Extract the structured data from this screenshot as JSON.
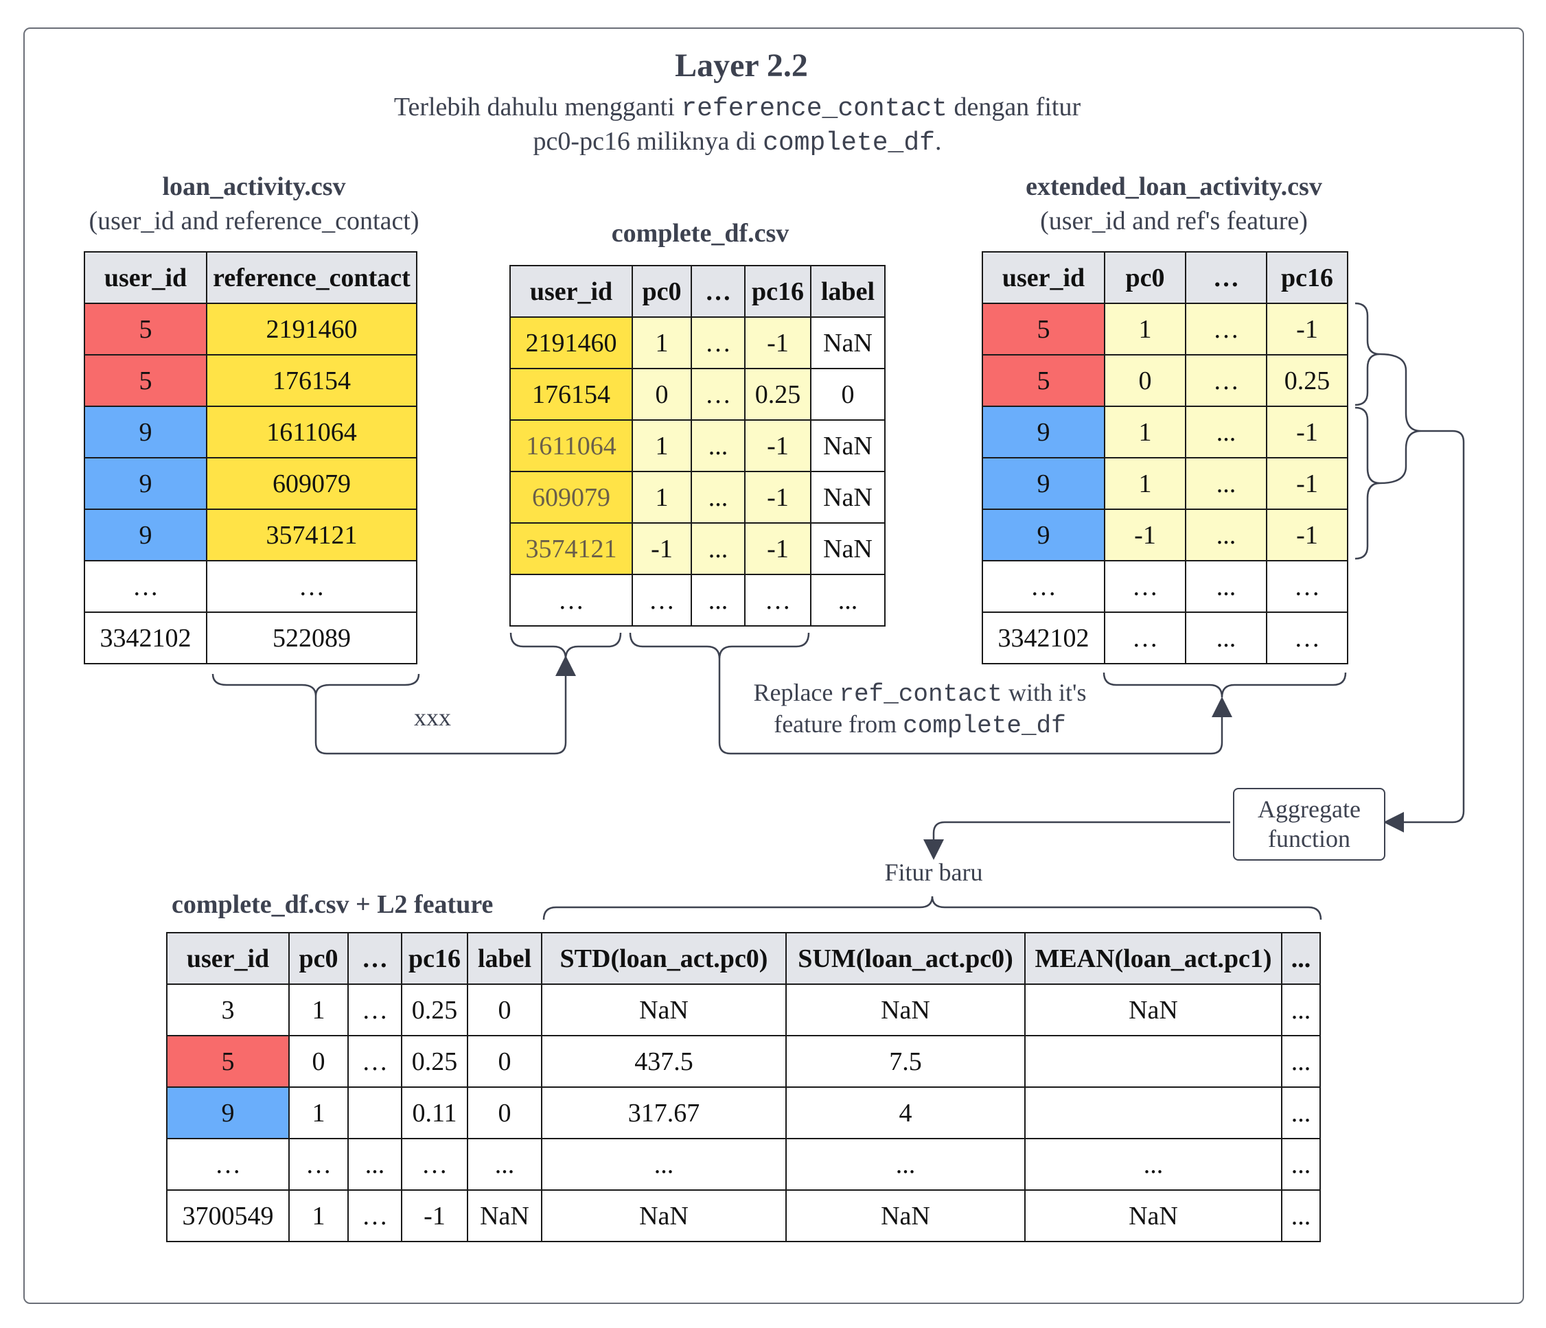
{
  "title": "Layer 2.2",
  "subtitle": {
    "l1_a": "Terlebih dahulu mengganti ",
    "l1_code": "reference_contact",
    "l1_b": " dengan fitur",
    "l2_a": "pc0-pc16 miliknya di ",
    "l2_code": "complete_df",
    "l2_b": "."
  },
  "loan_activity": {
    "title": "loan_activity.csv",
    "subtitle": "(user_id and reference_contact)",
    "headers": [
      "user_id",
      "reference_contact"
    ],
    "rows": [
      [
        "5",
        "2191460"
      ],
      [
        "5",
        "176154"
      ],
      [
        "9",
        "1611064"
      ],
      [
        "9",
        "609079"
      ],
      [
        "9",
        "3574121"
      ],
      [
        "…",
        "…"
      ],
      [
        "3342102",
        "522089"
      ]
    ]
  },
  "complete_df": {
    "title": "complete_df.csv",
    "headers": [
      "user_id",
      "pc0",
      "…",
      "pc16",
      "label"
    ],
    "rows": [
      [
        "2191460",
        "1",
        "…",
        "-1",
        "NaN"
      ],
      [
        "176154",
        "0",
        "…",
        "0.25",
        "0"
      ],
      [
        "1611064",
        "1",
        "...",
        "-1",
        "NaN"
      ],
      [
        "609079",
        "1",
        "...",
        "-1",
        "NaN"
      ],
      [
        "3574121",
        "-1",
        "...",
        "-1",
        "NaN"
      ],
      [
        "…",
        "…",
        "...",
        "…",
        "..."
      ]
    ]
  },
  "extended": {
    "title": "extended_loan_activity.csv",
    "subtitle": "(user_id and ref's feature)",
    "headers": [
      "user_id",
      "pc0",
      "…",
      "pc16"
    ],
    "rows": [
      [
        "5",
        "1",
        "…",
        "-1"
      ],
      [
        "5",
        "0",
        "…",
        "0.25"
      ],
      [
        "9",
        "1",
        "...",
        "-1"
      ],
      [
        "9",
        "1",
        "...",
        "-1"
      ],
      [
        "9",
        "-1",
        "...",
        "-1"
      ],
      [
        "…",
        "…",
        "...",
        "…"
      ],
      [
        "3342102",
        "…",
        "...",
        "…"
      ]
    ]
  },
  "labels": {
    "xxx": "xxx",
    "replace_a": "Replace ",
    "replace_code": "ref_contact",
    "replace_b": " with it's",
    "feature_a": "feature from ",
    "feature_code": "complete_df",
    "aggregate_l1": "Aggregate",
    "aggregate_l2": "function",
    "fitur_baru": "Fitur baru"
  },
  "final": {
    "title": "complete_df.csv + L2 feature",
    "headers": [
      "user_id",
      "pc0",
      "…",
      "pc16",
      "label",
      "STD(loan_act.pc0)",
      "SUM(loan_act.pc0)",
      "MEAN(loan_act.pc1)",
      "..."
    ],
    "rows": [
      [
        "3",
        "1",
        "…",
        "0.25",
        "0",
        "NaN",
        "NaN",
        "NaN",
        "..."
      ],
      [
        "5",
        "0",
        "…",
        "0.25",
        "0",
        "437.5",
        "7.5",
        "",
        "..."
      ],
      [
        "9",
        "1",
        "",
        "0.11",
        "0",
        "317.67",
        "4",
        "",
        "..."
      ],
      [
        "…",
        "…",
        "...",
        "…",
        "...",
        "...",
        "...",
        "...",
        "..."
      ],
      [
        "3700549",
        "1",
        "…",
        "-1",
        "NaN",
        "NaN",
        "NaN",
        "NaN",
        "..."
      ]
    ]
  },
  "colors": {
    "user5": "#f86b6b",
    "user9": "#6aaefb",
    "reference": "#ffe347",
    "feature": "#fdfbc8",
    "header": "#e3e5ea",
    "connector": "#3d4250"
  }
}
